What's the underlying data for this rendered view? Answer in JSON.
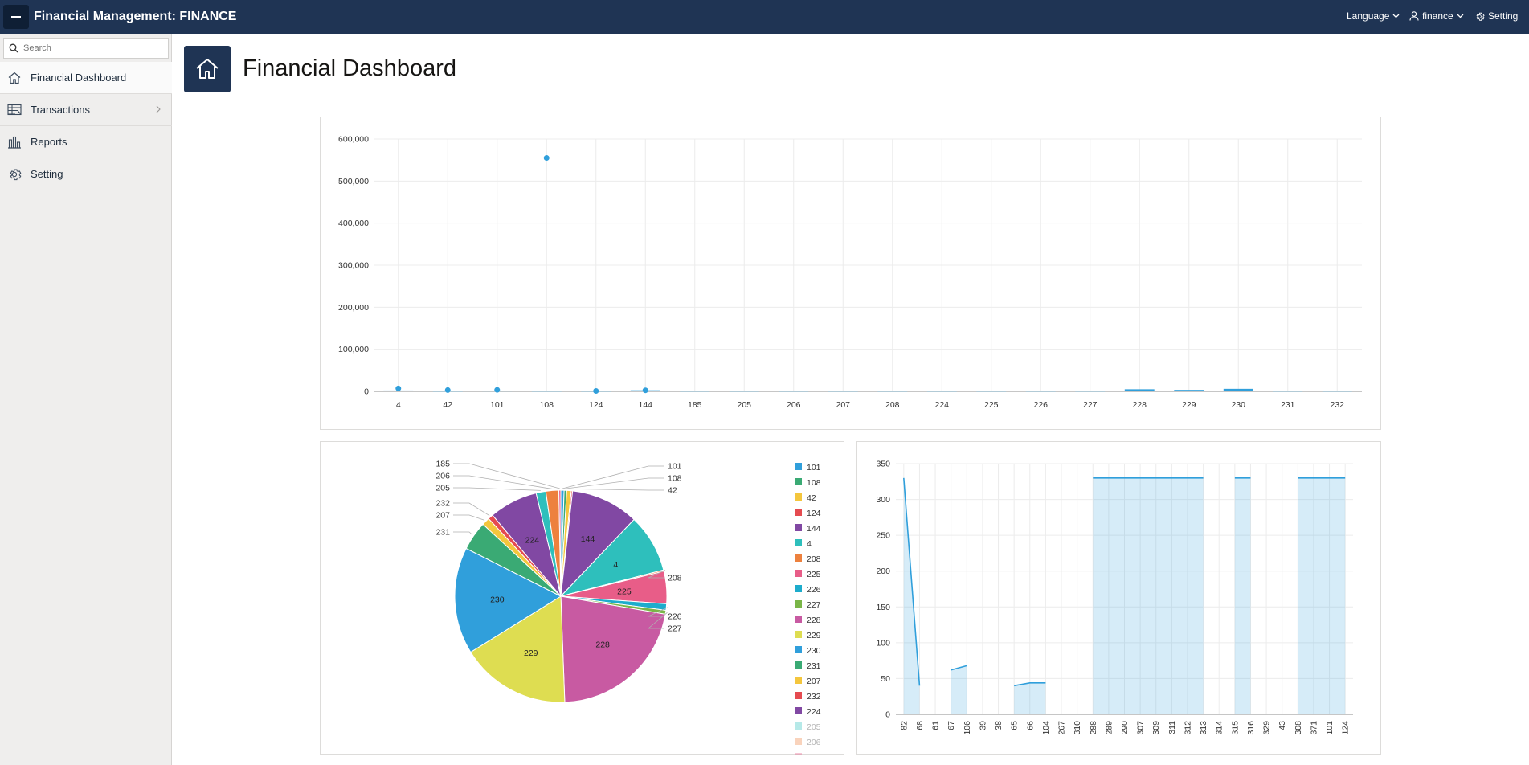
{
  "header": {
    "title": "Financial Management: FINANCE",
    "language_label": "Language",
    "user_label": "finance",
    "setting_label": "Setting"
  },
  "sidebar": {
    "search_placeholder": "Search",
    "items": [
      {
        "label": "Financial Dashboard",
        "icon": "home-icon"
      },
      {
        "label": "Transactions",
        "icon": "table-icon"
      },
      {
        "label": "Reports",
        "icon": "bar-chart-icon"
      },
      {
        "label": "Setting",
        "icon": "gear-icon"
      }
    ]
  },
  "page": {
    "title": "Financial Dashboard"
  },
  "colors": {
    "header": "#1f3454",
    "series": "#309fdb"
  },
  "chart_data": [
    {
      "type": "bar",
      "grid": true,
      "ylim": [
        0,
        600000
      ],
      "yticks": [
        "0",
        "100,000",
        "200,000",
        "300,000",
        "400,000",
        "500,000",
        "600,000"
      ],
      "categories": [
        "4",
        "42",
        "101",
        "108",
        "124",
        "144",
        "185",
        "205",
        "206",
        "207",
        "208",
        "224",
        "225",
        "226",
        "227",
        "228",
        "229",
        "230",
        "231",
        "232"
      ],
      "series": [
        {
          "type": "bar",
          "values": [
            2000,
            1500,
            1800,
            1500,
            1500,
            2500,
            1500,
            1500,
            1500,
            1500,
            1500,
            1500,
            1500,
            1500,
            1500,
            5000,
            3500,
            6000,
            1500,
            1500
          ]
        },
        {
          "type": "scatter",
          "values": [
            7000,
            3000,
            3500,
            555000,
            1000,
            2500,
            null,
            null,
            null,
            null,
            null,
            null,
            null,
            null,
            null,
            null,
            null,
            null,
            null,
            null
          ]
        }
      ]
    },
    {
      "type": "pie",
      "legend_position": "right",
      "slices": [
        {
          "label": "101",
          "value": 0.5,
          "color": "#309fdb"
        },
        {
          "label": "108",
          "value": 0.4,
          "color": "#3aaa74"
        },
        {
          "label": "42",
          "value": 0.7,
          "color": "#f4c63d"
        },
        {
          "label": "124",
          "value": 0.2,
          "color": "#e54b50"
        },
        {
          "label": "144",
          "value": 10.5,
          "color": "#8148a3"
        },
        {
          "label": "4",
          "value": 9.0,
          "color": "#2ebfbc"
        },
        {
          "label": "208",
          "value": 0.2,
          "color": "#ed813e"
        },
        {
          "label": "225",
          "value": 5.0,
          "color": "#e85d88"
        },
        {
          "label": "226",
          "value": 1.0,
          "color": "#1daccc"
        },
        {
          "label": "227",
          "value": 0.6,
          "color": "#7ab648"
        },
        {
          "label": "228",
          "value": 22.0,
          "color": "#c85aa2"
        },
        {
          "label": "229",
          "value": 17.0,
          "color": "#dedd51"
        },
        {
          "label": "230",
          "value": 16.5,
          "color": "#309fdb"
        },
        {
          "label": "231",
          "value": 4.5,
          "color": "#3aaa74"
        },
        {
          "label": "207",
          "value": 1.2,
          "color": "#f4c63d"
        },
        {
          "label": "232",
          "value": 0.8,
          "color": "#e54b50"
        },
        {
          "label": "224",
          "value": 7.5,
          "color": "#8148a3"
        },
        {
          "label": "205",
          "value": 1.5,
          "color": "#2ebfbc"
        },
        {
          "label": "206",
          "value": 2.0,
          "color": "#ed813e"
        },
        {
          "label": "185",
          "value": 0.3,
          "color": "#e85d88"
        }
      ],
      "inside_labels": [
        "144",
        "4",
        "225",
        "228",
        "229",
        "230",
        "224"
      ]
    },
    {
      "type": "area",
      "grid": true,
      "ylim": [
        0,
        350
      ],
      "yticks": [
        "0",
        "50",
        "100",
        "150",
        "200",
        "250",
        "300",
        "350"
      ],
      "categories": [
        "82",
        "68",
        "61",
        "67",
        "106",
        "39",
        "38",
        "65",
        "66",
        "104",
        "267",
        "310",
        "288",
        "289",
        "290",
        "307",
        "309",
        "311",
        "312",
        "313",
        "314",
        "315",
        "316",
        "329",
        "43",
        "308",
        "371",
        "101",
        "124"
      ],
      "values": [
        330,
        40,
        null,
        62,
        68,
        null,
        null,
        40,
        44,
        44,
        null,
        null,
        330,
        330,
        330,
        330,
        330,
        330,
        330,
        330,
        null,
        330,
        330,
        null,
        null,
        330,
        330,
        330,
        330
      ]
    }
  ]
}
